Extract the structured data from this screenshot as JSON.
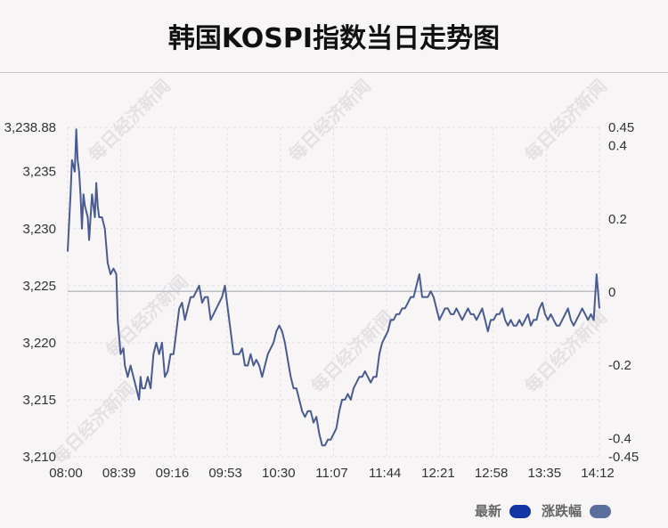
{
  "title": "韩国KOSPI指数当日走势图",
  "watermark": "每日经济新闻",
  "legend": {
    "latest": "最新",
    "change": "涨跌幅"
  },
  "colors": {
    "line": "#4a5b8f",
    "latest_swatch": "#1235a6",
    "change_swatch": "#5a6f9e",
    "baseline": "#bdbdc6",
    "grid": "#e2dfe2"
  },
  "chart_data": {
    "type": "line",
    "x_ticks": [
      "08:00",
      "08:39",
      "09:16",
      "09:53",
      "10:30",
      "11:07",
      "11:44",
      "12:21",
      "12:58",
      "13:35",
      "14:12"
    ],
    "y_left_ticks": [
      "3,238.88",
      "3,235",
      "3,230",
      "3,225",
      "3,220",
      "3,215",
      "3,210"
    ],
    "y_left_values": [
      3238.88,
      3235,
      3230,
      3225,
      3220,
      3215,
      3210
    ],
    "y_left_range": [
      3210,
      3238.88
    ],
    "y_right_ticks": [
      "0.45",
      "0.4",
      "0.2",
      "0",
      "-0.2",
      "-0.4",
      "-0.45"
    ],
    "y_right_values": [
      0.45,
      0.4,
      0.2,
      0,
      -0.2,
      -0.4,
      -0.45
    ],
    "y_right_range": [
      -0.45,
      0.45
    ],
    "baseline": 3224.5,
    "x_range_minutes": [
      0,
      372
    ],
    "series": [
      {
        "name": "最新",
        "points": [
          [
            0,
            3228
          ],
          [
            2,
            3233
          ],
          [
            3,
            3236
          ],
          [
            5,
            3235
          ],
          [
            6,
            3238.7
          ],
          [
            7,
            3236
          ],
          [
            8,
            3235
          ],
          [
            9,
            3233
          ],
          [
            10,
            3230
          ],
          [
            11,
            3233
          ],
          [
            12,
            3232
          ],
          [
            14,
            3231
          ],
          [
            15,
            3229
          ],
          [
            17,
            3233
          ],
          [
            18,
            3232
          ],
          [
            19,
            3231
          ],
          [
            20,
            3234
          ],
          [
            21,
            3232
          ],
          [
            22,
            3231
          ],
          [
            24,
            3231
          ],
          [
            26,
            3230
          ],
          [
            28,
            3227
          ],
          [
            30,
            3226
          ],
          [
            32,
            3226.5
          ],
          [
            34,
            3226
          ],
          [
            35,
            3222
          ],
          [
            37,
            3219
          ],
          [
            39,
            3219.5
          ],
          [
            40,
            3218
          ],
          [
            42,
            3217
          ],
          [
            44,
            3218
          ],
          [
            46,
            3217
          ],
          [
            48,
            3216
          ],
          [
            50,
            3215
          ],
          [
            51,
            3217
          ],
          [
            52,
            3216
          ],
          [
            54,
            3216
          ],
          [
            56,
            3217
          ],
          [
            58,
            3216
          ],
          [
            60,
            3219
          ],
          [
            62,
            3220
          ],
          [
            64,
            3219
          ],
          [
            66,
            3220
          ],
          [
            68,
            3217
          ],
          [
            70,
            3217.5
          ],
          [
            72,
            3219
          ],
          [
            74,
            3219
          ],
          [
            76,
            3221
          ],
          [
            78,
            3223
          ],
          [
            80,
            3223.5
          ],
          [
            82,
            3222
          ],
          [
            84,
            3223
          ],
          [
            86,
            3224
          ],
          [
            88,
            3224
          ],
          [
            90,
            3224.5
          ],
          [
            92,
            3225
          ],
          [
            94,
            3223.5
          ],
          [
            96,
            3224
          ],
          [
            98,
            3224
          ],
          [
            100,
            3222
          ],
          [
            102,
            3222.5
          ],
          [
            104,
            3223
          ],
          [
            106,
            3223.5
          ],
          [
            108,
            3224
          ],
          [
            110,
            3225
          ],
          [
            112,
            3223
          ],
          [
            114,
            3221
          ],
          [
            116,
            3219
          ],
          [
            118,
            3219
          ],
          [
            120,
            3219
          ],
          [
            122,
            3219.5
          ],
          [
            124,
            3218
          ],
          [
            126,
            3218
          ],
          [
            128,
            3219
          ],
          [
            130,
            3218
          ],
          [
            132,
            3218.5
          ],
          [
            134,
            3218
          ],
          [
            136,
            3217
          ],
          [
            138,
            3218
          ],
          [
            140,
            3219
          ],
          [
            142,
            3219.5
          ],
          [
            144,
            3220
          ],
          [
            146,
            3221
          ],
          [
            148,
            3221.5
          ],
          [
            150,
            3221
          ],
          [
            152,
            3220
          ],
          [
            154,
            3218.5
          ],
          [
            156,
            3217
          ],
          [
            158,
            3216
          ],
          [
            160,
            3216
          ],
          [
            162,
            3215
          ],
          [
            164,
            3214
          ],
          [
            166,
            3213.5
          ],
          [
            168,
            3214
          ],
          [
            170,
            3214
          ],
          [
            172,
            3213
          ],
          [
            174,
            3213.5
          ],
          [
            176,
            3212
          ],
          [
            178,
            3211
          ],
          [
            180,
            3211
          ],
          [
            182,
            3211.5
          ],
          [
            184,
            3211.5
          ],
          [
            186,
            3212
          ],
          [
            188,
            3212.5
          ],
          [
            190,
            3214
          ],
          [
            192,
            3215
          ],
          [
            194,
            3215
          ],
          [
            196,
            3215.5
          ],
          [
            198,
            3215
          ],
          [
            200,
            3216
          ],
          [
            202,
            3216.5
          ],
          [
            204,
            3217
          ],
          [
            206,
            3217
          ],
          [
            208,
            3217.5
          ],
          [
            210,
            3217
          ],
          [
            212,
            3216.5
          ],
          [
            214,
            3217
          ],
          [
            216,
            3217
          ],
          [
            218,
            3219
          ],
          [
            220,
            3220
          ],
          [
            222,
            3220.5
          ],
          [
            224,
            3221
          ],
          [
            226,
            3222
          ],
          [
            228,
            3222
          ],
          [
            230,
            3222.5
          ],
          [
            232,
            3222.5
          ],
          [
            234,
            3223
          ],
          [
            236,
            3223
          ],
          [
            238,
            3223.5
          ],
          [
            240,
            3224
          ],
          [
            242,
            3224
          ],
          [
            244,
            3225
          ],
          [
            246,
            3226
          ],
          [
            248,
            3224
          ],
          [
            250,
            3224
          ],
          [
            252,
            3224
          ],
          [
            254,
            3224.5
          ],
          [
            256,
            3224
          ],
          [
            258,
            3223
          ],
          [
            260,
            3222
          ],
          [
            262,
            3222.5
          ],
          [
            264,
            3223
          ],
          [
            266,
            3223
          ],
          [
            268,
            3222.5
          ],
          [
            270,
            3222.5
          ],
          [
            272,
            3223
          ],
          [
            274,
            3222.5
          ],
          [
            276,
            3222
          ],
          [
            278,
            3222.5
          ],
          [
            280,
            3223
          ],
          [
            282,
            3222.5
          ],
          [
            284,
            3222.5
          ],
          [
            286,
            3222
          ],
          [
            288,
            3222.5
          ],
          [
            290,
            3223
          ],
          [
            292,
            3222
          ],
          [
            294,
            3221
          ],
          [
            296,
            3222
          ],
          [
            298,
            3222
          ],
          [
            300,
            3222.5
          ],
          [
            302,
            3222.5
          ],
          [
            304,
            3223
          ],
          [
            306,
            3222
          ],
          [
            308,
            3221.5
          ],
          [
            310,
            3222
          ],
          [
            312,
            3221.5
          ],
          [
            314,
            3221.5
          ],
          [
            316,
            3222
          ],
          [
            318,
            3221.5
          ],
          [
            320,
            3222
          ],
          [
            322,
            3222.5
          ],
          [
            324,
            3221.5
          ],
          [
            326,
            3222
          ],
          [
            328,
            3222
          ],
          [
            330,
            3223
          ],
          [
            332,
            3223.5
          ],
          [
            334,
            3222.5
          ],
          [
            336,
            3222
          ],
          [
            338,
            3222.5
          ],
          [
            340,
            3222
          ],
          [
            342,
            3221.5
          ],
          [
            344,
            3221.5
          ],
          [
            346,
            3222
          ],
          [
            348,
            3222.5
          ],
          [
            350,
            3223
          ],
          [
            352,
            3222
          ],
          [
            354,
            3221.5
          ],
          [
            356,
            3222
          ],
          [
            358,
            3222.5
          ],
          [
            360,
            3223
          ],
          [
            362,
            3222.5
          ],
          [
            364,
            3222
          ],
          [
            366,
            3222.5
          ],
          [
            368,
            3222
          ],
          [
            370,
            3226
          ],
          [
            372,
            3223
          ]
        ]
      }
    ]
  }
}
